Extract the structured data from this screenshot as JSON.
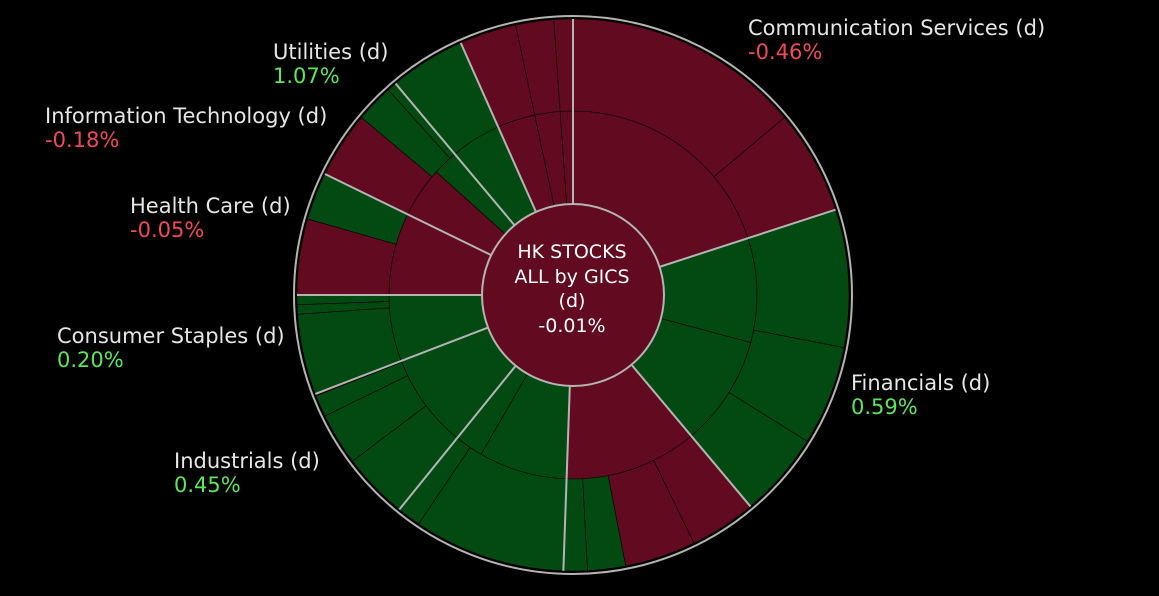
{
  "colors": {
    "positive_fill": "#024a12",
    "negative_fill": "#620a1f",
    "positive_text": "#5ce65c",
    "negative_text": "#ef4a55",
    "separator": "#b4b4b4",
    "background": "#000000"
  },
  "chart_data": {
    "type": "sunburst",
    "center": {
      "line1": "HK STOCKS",
      "line2": "ALL by GICS",
      "line3": "(d)",
      "value": "-0.01%",
      "sign": "neg"
    },
    "sectors": [
      {
        "name": "Communication Services (d)",
        "change": "-0.46%",
        "sign": "neg"
      },
      {
        "name": "Financials (d)",
        "change": "0.59%",
        "sign": "pos"
      },
      {
        "name": "Industrials (d)",
        "change": "0.45%",
        "sign": "pos"
      },
      {
        "name": "Consumer Staples (d)",
        "change": "0.20%",
        "sign": "pos"
      },
      {
        "name": "Health Care (d)",
        "change": "-0.05%",
        "sign": "neg"
      },
      {
        "name": "Information Technology (d)",
        "change": "-0.18%",
        "sign": "neg"
      },
      {
        "name": "Utilities (d)",
        "change": "1.07%",
        "sign": "pos"
      }
    ]
  }
}
